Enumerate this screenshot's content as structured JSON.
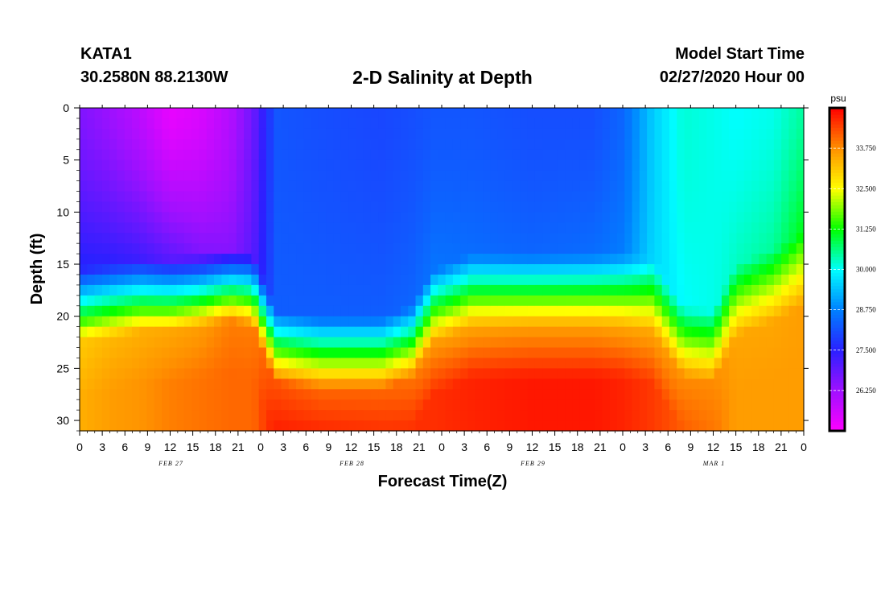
{
  "header": {
    "station": "KATA1",
    "coords": "30.2580N 88.2130W",
    "title": "2-D Salinity at Depth",
    "start_label": "Model Start Time",
    "start_value": "02/27/2020 Hour 00"
  },
  "chart_data": {
    "type": "heatmap",
    "title": "2-D Salinity at Depth",
    "xlabel": "Forecast Time(Z)",
    "ylabel": "Depth (ft)",
    "xlim": [
      0,
      96
    ],
    "ylim": [
      0,
      31
    ],
    "y_inverted": true,
    "x_tick_hours": [
      0,
      3,
      6,
      9,
      12,
      15,
      18,
      21,
      24,
      27,
      30,
      33,
      36,
      39,
      42,
      45,
      48,
      51,
      54,
      57,
      60,
      63,
      66,
      69,
      72,
      75,
      78,
      81,
      84,
      87,
      90,
      93,
      96
    ],
    "x_tick_labels": [
      "0",
      "3",
      "6",
      "9",
      "12",
      "15",
      "18",
      "21",
      "0",
      "3",
      "6",
      "9",
      "12",
      "15",
      "18",
      "21",
      "0",
      "3",
      "6",
      "9",
      "12",
      "15",
      "18",
      "21",
      "0",
      "3",
      "6",
      "9",
      "12",
      "15",
      "18",
      "21",
      "0"
    ],
    "date_labels": [
      {
        "hour": 12,
        "text": "FEB 27"
      },
      {
        "hour": 36,
        "text": "FEB 28"
      },
      {
        "hour": 60,
        "text": "FEB 29"
      },
      {
        "hour": 84,
        "text": "MAR 1"
      }
    ],
    "y_ticks": [
      0,
      5,
      10,
      15,
      20,
      25,
      30
    ],
    "y_tick_labels": [
      "0",
      "5",
      "10",
      "15",
      "20",
      "25",
      "30"
    ],
    "colorbar": {
      "unit": "psu",
      "range": [
        25.0,
        35.0
      ],
      "ticks": [
        26.25,
        27.5,
        28.75,
        30.0,
        31.25,
        32.5,
        33.75
      ],
      "tick_labels": [
        "26.250",
        "27.500",
        "28.750",
        "30.000",
        "31.250",
        "32.500",
        "33.750"
      ],
      "stops": [
        {
          "v": 25.0,
          "color": "#ff00ff"
        },
        {
          "v": 26.25,
          "color": "#a010ff"
        },
        {
          "v": 27.5,
          "color": "#2a20ff"
        },
        {
          "v": 28.75,
          "color": "#0080ff"
        },
        {
          "v": 30.0,
          "color": "#00ffff"
        },
        {
          "v": 31.25,
          "color": "#00ff00"
        },
        {
          "v": 32.5,
          "color": "#ffff00"
        },
        {
          "v": 33.75,
          "color": "#ff9000"
        },
        {
          "v": 35.0,
          "color": "#ff0000"
        }
      ]
    },
    "profile_columns": [
      {
        "hour": 0,
        "halocline_ft": 18.5,
        "surface_psu": 26.6,
        "upper_psu": 27.6,
        "lower_psu": 33.1,
        "bottom_psu": 33.4
      },
      {
        "hour": 4,
        "halocline_ft": 18.0,
        "surface_psu": 26.3,
        "upper_psu": 27.5,
        "lower_psu": 33.3,
        "bottom_psu": 33.6
      },
      {
        "hour": 8,
        "halocline_ft": 17.5,
        "surface_psu": 25.9,
        "upper_psu": 27.3,
        "lower_psu": 33.4,
        "bottom_psu": 33.7
      },
      {
        "hour": 12,
        "halocline_ft": 17.5,
        "surface_psu": 25.3,
        "upper_psu": 27.0,
        "lower_psu": 33.5,
        "bottom_psu": 33.9
      },
      {
        "hour": 16,
        "halocline_ft": 17.0,
        "surface_psu": 25.5,
        "upper_psu": 26.6,
        "lower_psu": 33.6,
        "bottom_psu": 34.0
      },
      {
        "hour": 20,
        "halocline_ft": 16.5,
        "surface_psu": 26.0,
        "upper_psu": 26.5,
        "lower_psu": 33.9,
        "bottom_psu": 34.1
      },
      {
        "hour": 23,
        "halocline_ft": 17.0,
        "surface_psu": 26.8,
        "upper_psu": 27.0,
        "lower_psu": 33.9,
        "bottom_psu": 34.1
      },
      {
        "hour": 26,
        "halocline_ft": 22.5,
        "surface_psu": 28.2,
        "upper_psu": 28.3,
        "lower_psu": 34.3,
        "bottom_psu": 34.8
      },
      {
        "hour": 32,
        "halocline_ft": 23.0,
        "surface_psu": 28.1,
        "upper_psu": 28.3,
        "lower_psu": 34.1,
        "bottom_psu": 34.8
      },
      {
        "hour": 40,
        "halocline_ft": 23.0,
        "surface_psu": 28.0,
        "upper_psu": 28.3,
        "lower_psu": 34.1,
        "bottom_psu": 34.7
      },
      {
        "hour": 44,
        "halocline_ft": 22.0,
        "surface_psu": 28.1,
        "upper_psu": 28.4,
        "lower_psu": 34.0,
        "bottom_psu": 34.6
      },
      {
        "hour": 47,
        "halocline_ft": 18.5,
        "surface_psu": 28.2,
        "upper_psu": 28.6,
        "lower_psu": 33.6,
        "bottom_psu": 34.6
      },
      {
        "hour": 52,
        "halocline_ft": 17.0,
        "surface_psu": 28.2,
        "upper_psu": 28.5,
        "lower_psu": 33.5,
        "bottom_psu": 34.7
      },
      {
        "hour": 60,
        "halocline_ft": 17.0,
        "surface_psu": 28.1,
        "upper_psu": 28.4,
        "lower_psu": 33.6,
        "bottom_psu": 34.8
      },
      {
        "hour": 68,
        "halocline_ft": 17.0,
        "surface_psu": 28.1,
        "upper_psu": 28.5,
        "lower_psu": 33.6,
        "bottom_psu": 34.8
      },
      {
        "hour": 72,
        "halocline_ft": 17.0,
        "surface_psu": 28.4,
        "upper_psu": 28.7,
        "lower_psu": 33.5,
        "bottom_psu": 34.7
      },
      {
        "hour": 76,
        "halocline_ft": 17.5,
        "surface_psu": 29.5,
        "upper_psu": 29.6,
        "lower_psu": 33.5,
        "bottom_psu": 34.5
      },
      {
        "hour": 80,
        "halocline_ft": 22.0,
        "surface_psu": 30.2,
        "upper_psu": 30.0,
        "lower_psu": 33.8,
        "bottom_psu": 34.2
      },
      {
        "hour": 84,
        "halocline_ft": 22.5,
        "surface_psu": 30.1,
        "upper_psu": 30.1,
        "lower_psu": 33.8,
        "bottom_psu": 34.0
      },
      {
        "hour": 87,
        "halocline_ft": 18.0,
        "surface_psu": 30.0,
        "upper_psu": 30.3,
        "lower_psu": 33.5,
        "bottom_psu": 33.6
      },
      {
        "hour": 92,
        "halocline_ft": 16.5,
        "surface_psu": 30.1,
        "upper_psu": 30.5,
        "lower_psu": 33.5,
        "bottom_psu": 33.6
      },
      {
        "hour": 96,
        "halocline_ft": 15.0,
        "surface_psu": 30.5,
        "upper_psu": 31.2,
        "lower_psu": 33.6,
        "bottom_psu": 33.6
      }
    ]
  }
}
